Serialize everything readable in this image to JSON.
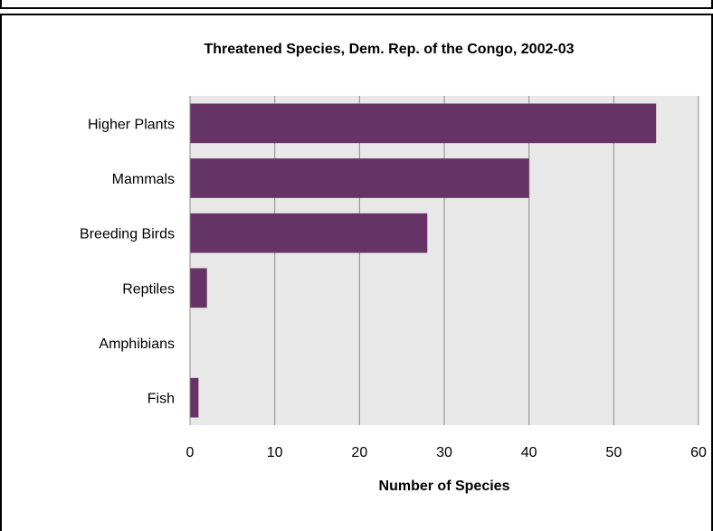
{
  "chart_data": {
    "type": "bar",
    "orientation": "horizontal",
    "title": "Threatened Species, Dem. Rep. of the Congo, 2002-03",
    "xlabel": "Number of Species",
    "ylabel": "",
    "categories": [
      "Higher Plants",
      "Mammals",
      "Breeding Birds",
      "Reptiles",
      "Amphibians",
      "Fish"
    ],
    "values": [
      55,
      40,
      28,
      2,
      0,
      1
    ],
    "xlim": [
      0,
      60
    ],
    "xticks": [
      0,
      10,
      20,
      30,
      40,
      50,
      60
    ],
    "xtick_labels": [
      "0",
      "10",
      "20",
      "30",
      "40",
      "50",
      "60"
    ],
    "grid": "vertical",
    "legend": "none",
    "colors": {
      "bar": "#663366",
      "plot_background": "#e8e8e8",
      "gridline": "#8c8c8c"
    }
  }
}
